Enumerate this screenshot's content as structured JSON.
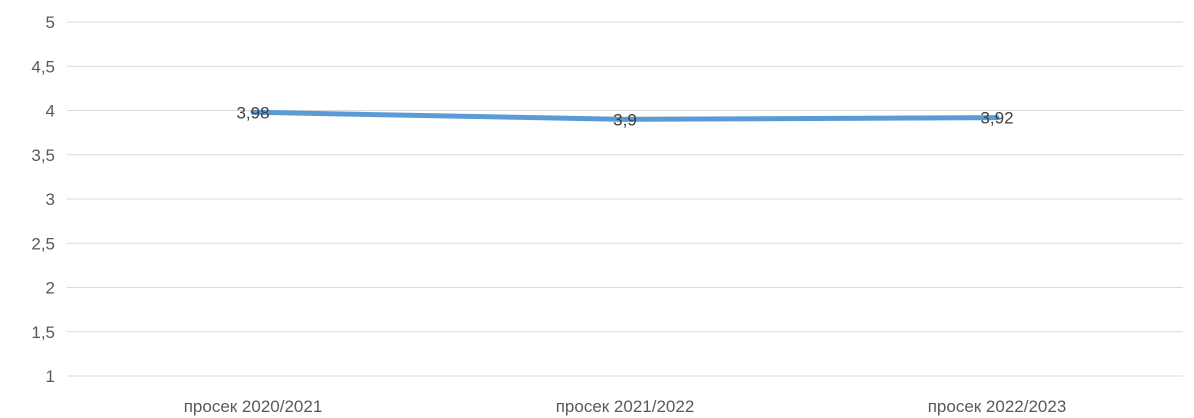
{
  "chart_data": {
    "type": "line",
    "title": "",
    "xlabel": "",
    "ylabel": "",
    "categories": [
      "просек 2020/2021",
      "просек 2021/2022",
      "просек 2022/2023"
    ],
    "series": [
      {
        "values": [
          3.98,
          3.9,
          3.92
        ],
        "data_labels": [
          "3,98",
          "3,9",
          "3,92"
        ]
      }
    ],
    "ylim": [
      1,
      5
    ],
    "y_ticks": [
      1,
      1.5,
      2,
      2.5,
      3,
      3.5,
      4,
      4.5,
      5
    ],
    "y_tick_labels": [
      "1",
      "1,5",
      "2",
      "2,5",
      "3",
      "3,5",
      "4",
      "4,5",
      "5"
    ],
    "grid": true,
    "legend": "none",
    "colors": {
      "series": "#5b9bd5",
      "grid": "#d9d9d9",
      "text": "#595959"
    }
  }
}
